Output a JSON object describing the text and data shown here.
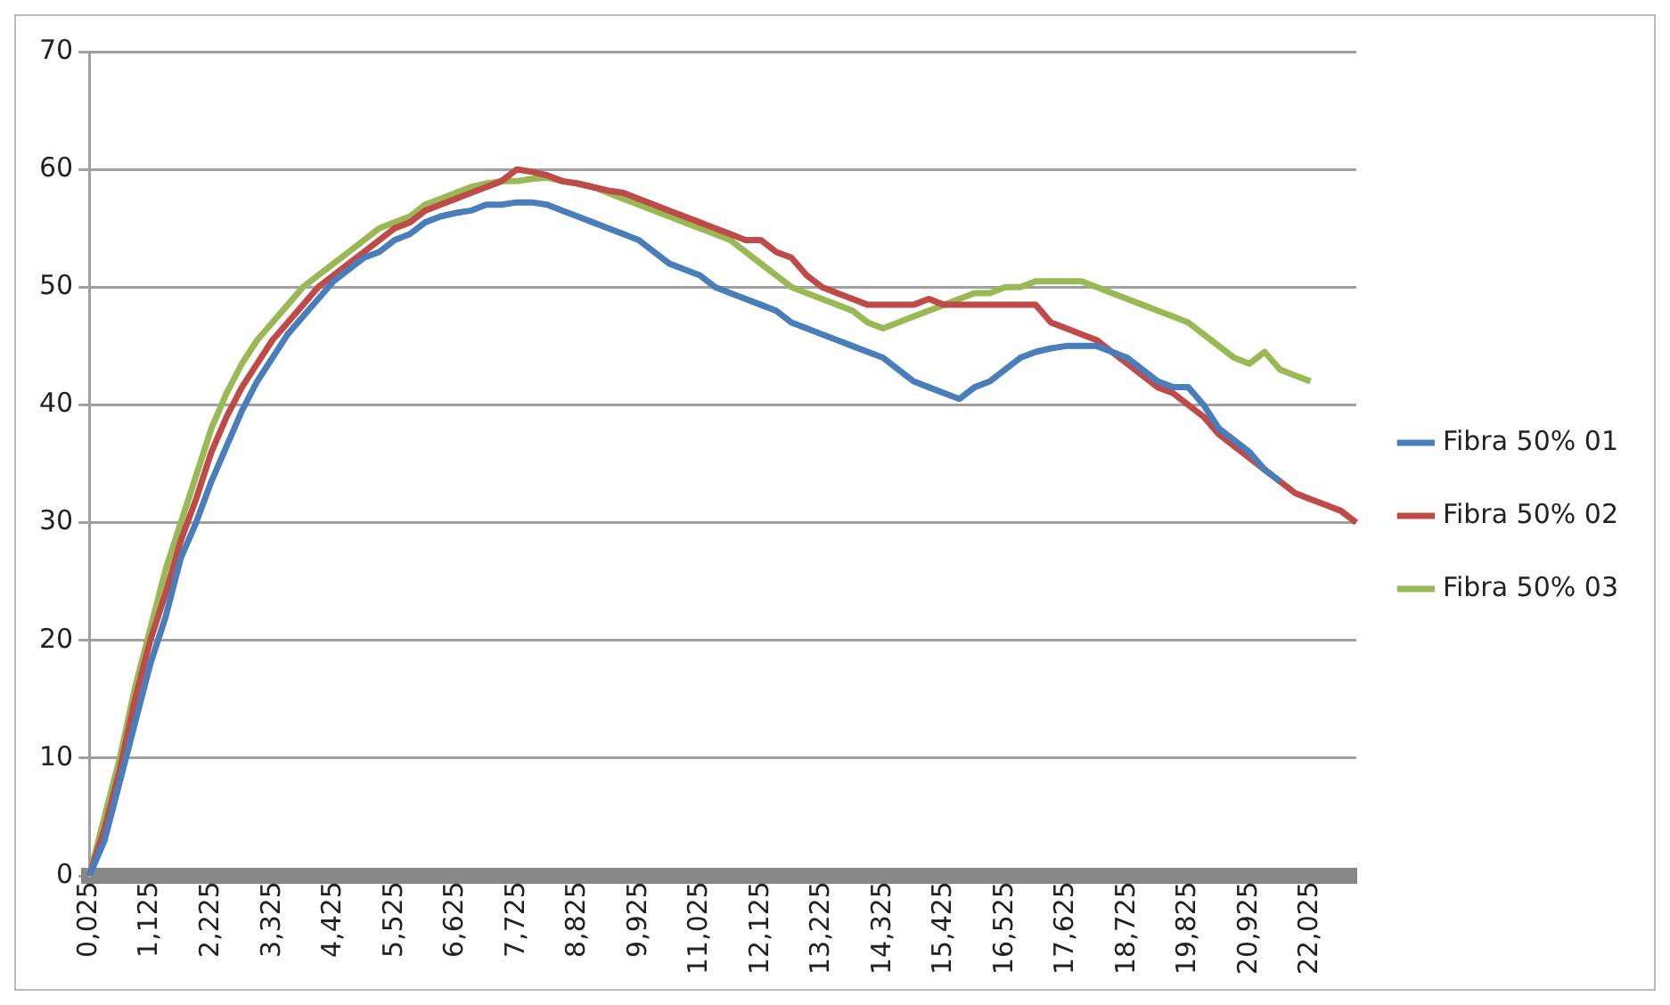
{
  "chart_data": {
    "type": "line",
    "categories": [
      "0,025",
      null,
      null,
      null,
      "1,125",
      null,
      null,
      null,
      "2,225",
      null,
      null,
      null,
      "3,325",
      null,
      null,
      null,
      "4,425",
      null,
      null,
      null,
      "5,525",
      null,
      null,
      null,
      "6,625",
      null,
      null,
      null,
      "7,725",
      null,
      null,
      null,
      "8,825",
      null,
      null,
      null,
      "9,925",
      null,
      null,
      null,
      "11,025",
      null,
      null,
      null,
      "12,125",
      null,
      null,
      null,
      "13,225",
      null,
      null,
      null,
      "14,325",
      null,
      null,
      null,
      "15,425",
      null,
      null,
      null,
      "16,525",
      null,
      null,
      null,
      "17,625",
      null,
      null,
      null,
      "18,725",
      null,
      null,
      null,
      "19,825",
      null,
      null,
      null,
      "20,925",
      null,
      null,
      null,
      "22,025",
      null,
      null,
      null
    ],
    "ylim": [
      0,
      70
    ],
    "yticks": [
      0,
      10,
      20,
      30,
      40,
      50,
      60,
      70
    ],
    "grid": "y",
    "legend": "right",
    "marker": "none",
    "line_style": "solid",
    "series": [
      {
        "name": "Fibra 50% 01",
        "color": "#4a7ebb",
        "values": [
          0,
          3,
          8,
          13,
          18,
          22,
          27,
          30,
          33.5,
          36.5,
          39.5,
          42,
          44,
          46,
          47.5,
          49,
          50.5,
          51.5,
          52.5,
          53,
          54,
          54.5,
          55.5,
          56,
          56.3,
          56.5,
          57,
          57,
          57.2,
          57.2,
          57,
          56.5,
          56,
          55.5,
          55,
          54.5,
          54,
          53,
          52,
          51.5,
          51,
          50,
          49.5,
          49,
          48.5,
          48,
          47,
          46.5,
          46,
          45.5,
          45,
          44.5,
          44,
          43,
          42,
          41.5,
          41,
          40.5,
          41.5,
          42,
          43,
          44,
          44.5,
          44.8,
          45,
          45,
          45,
          44.5,
          44,
          43,
          42,
          41.5,
          41.5,
          40,
          38,
          37,
          36,
          34.5,
          33.5,
          null,
          null,
          null,
          null,
          null
        ]
      },
      {
        "name": "Fibra 50% 02",
        "color": "#be4b48",
        "values": [
          0,
          4,
          9,
          15,
          20,
          24,
          28.5,
          32,
          36,
          39,
          41.5,
          43.5,
          45.5,
          47,
          48.5,
          50,
          51,
          52,
          53,
          54,
          55,
          55.5,
          56.5,
          57,
          57.5,
          58,
          58.5,
          59,
          60,
          59.8,
          59.5,
          59,
          58.8,
          58.5,
          58.2,
          58,
          57.5,
          57,
          56.5,
          56,
          55.5,
          55,
          54.5,
          54,
          54,
          53,
          52.5,
          51,
          50,
          49.5,
          49,
          48.5,
          48.5,
          48.5,
          48.5,
          49,
          48.5,
          48.5,
          48.5,
          48.5,
          48.5,
          48.5,
          48.5,
          47,
          46.5,
          46,
          45.5,
          44.5,
          43.5,
          42.5,
          41.5,
          41,
          40,
          39,
          37.5,
          36.5,
          35.5,
          34.5,
          33.5,
          32.5,
          32,
          31.5,
          31,
          30
        ]
      },
      {
        "name": "Fibra 50% 03",
        "color": "#98b954",
        "values": [
          0,
          5,
          10,
          16,
          21,
          26,
          30,
          34,
          38,
          41,
          43.5,
          45.5,
          47,
          48.5,
          50,
          51,
          52,
          53,
          54,
          55,
          55.5,
          56,
          57,
          57.5,
          58,
          58.5,
          58.8,
          59,
          59,
          59.2,
          59.3,
          59,
          58.8,
          58.5,
          58,
          57.5,
          57,
          56.5,
          56,
          55.5,
          55,
          54.5,
          54,
          53,
          52,
          51,
          50,
          49.5,
          49,
          48.5,
          48,
          47,
          46.5,
          47,
          47.5,
          48,
          48.5,
          49,
          49.5,
          49.5,
          50,
          50,
          50.5,
          50.5,
          50.5,
          50.5,
          50,
          49.5,
          49,
          48.5,
          48,
          47.5,
          47,
          46,
          45,
          44,
          43.5,
          44.5,
          43,
          42.5,
          42,
          null,
          null,
          null
        ]
      }
    ]
  }
}
